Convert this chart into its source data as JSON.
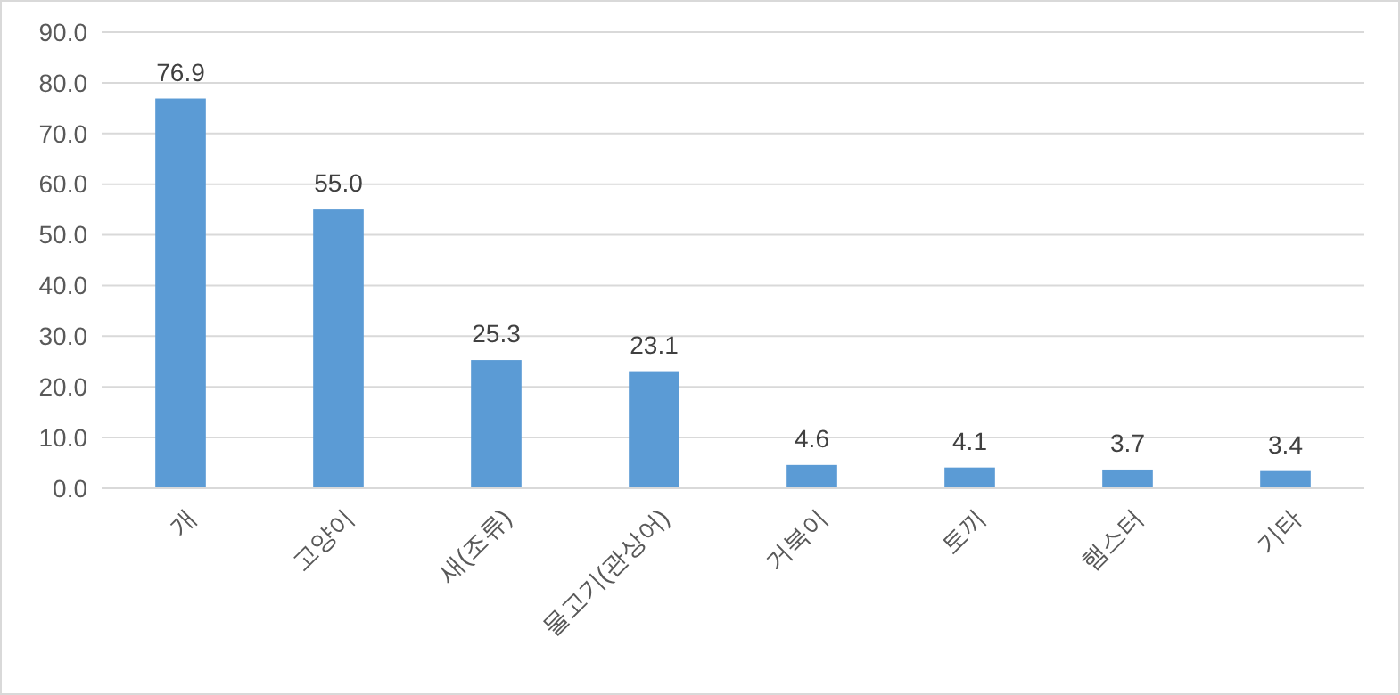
{
  "chart_data": {
    "type": "bar",
    "categories": [
      "개",
      "고양이",
      "새(조류)",
      "물고기(관상어)",
      "거북이",
      "토끼",
      "햄스터",
      "기타"
    ],
    "values": [
      76.9,
      55.0,
      25.3,
      23.1,
      4.6,
      4.1,
      3.7,
      3.4
    ],
    "value_labels": [
      "76.9",
      "55.0",
      "25.3",
      "23.1",
      "4.6",
      "4.1",
      "3.7",
      "3.4"
    ],
    "color": "#5b9bd5",
    "ylim": [
      0,
      90
    ],
    "yticks": [
      {
        "value": 0,
        "label": "0.0"
      },
      {
        "value": 10,
        "label": "10.0"
      },
      {
        "value": 20,
        "label": "20.0"
      },
      {
        "value": 30,
        "label": "30.0"
      },
      {
        "value": 40,
        "label": "40.0"
      },
      {
        "value": 50,
        "label": "50.0"
      },
      {
        "value": 60,
        "label": "60.0"
      },
      {
        "value": 70,
        "label": "70.0"
      },
      {
        "value": 80,
        "label": "80.0"
      },
      {
        "value": 90,
        "label": "90.0"
      }
    ],
    "grid": "y"
  }
}
